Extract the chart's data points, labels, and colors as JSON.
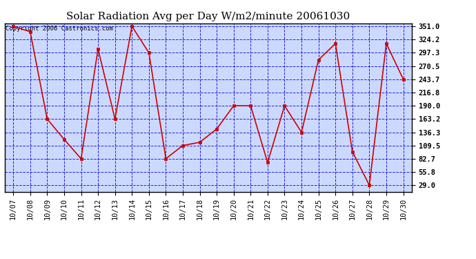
{
  "title": "Solar Radiation Avg per Day W/m2/minute 20061030",
  "copyright": "Copyright 2006 Castronics.com",
  "x_labels": [
    "10/07",
    "10/08",
    "10/09",
    "10/10",
    "10/11",
    "10/12",
    "10/13",
    "10/14",
    "10/15",
    "10/16",
    "10/17",
    "10/18",
    "10/19",
    "10/20",
    "10/21",
    "10/22",
    "10/23",
    "10/24",
    "10/25",
    "10/26",
    "10/27",
    "10/28",
    "10/29",
    "10/30"
  ],
  "y_values": [
    351.0,
    340.0,
    163.2,
    122.0,
    82.7,
    305.0,
    163.2,
    351.0,
    297.3,
    82.7,
    109.5,
    116.0,
    143.0,
    190.0,
    190.0,
    75.0,
    190.0,
    136.3,
    283.0,
    316.0,
    97.0,
    29.0,
    316.0,
    243.7
  ],
  "yticks": [
    29.0,
    55.8,
    82.7,
    109.5,
    136.3,
    163.2,
    190.0,
    216.8,
    243.7,
    270.5,
    297.3,
    324.2,
    351.0
  ],
  "line_color": "#cc0000",
  "marker_color": "#cc0000",
  "fig_bg_color": "#ffffff",
  "plot_bg_color": "#ccd9ff",
  "grid_color": "#0000cc",
  "border_color": "#000000",
  "title_fontsize": 11,
  "copyright_fontsize": 6.5,
  "tick_fontsize": 7.5
}
